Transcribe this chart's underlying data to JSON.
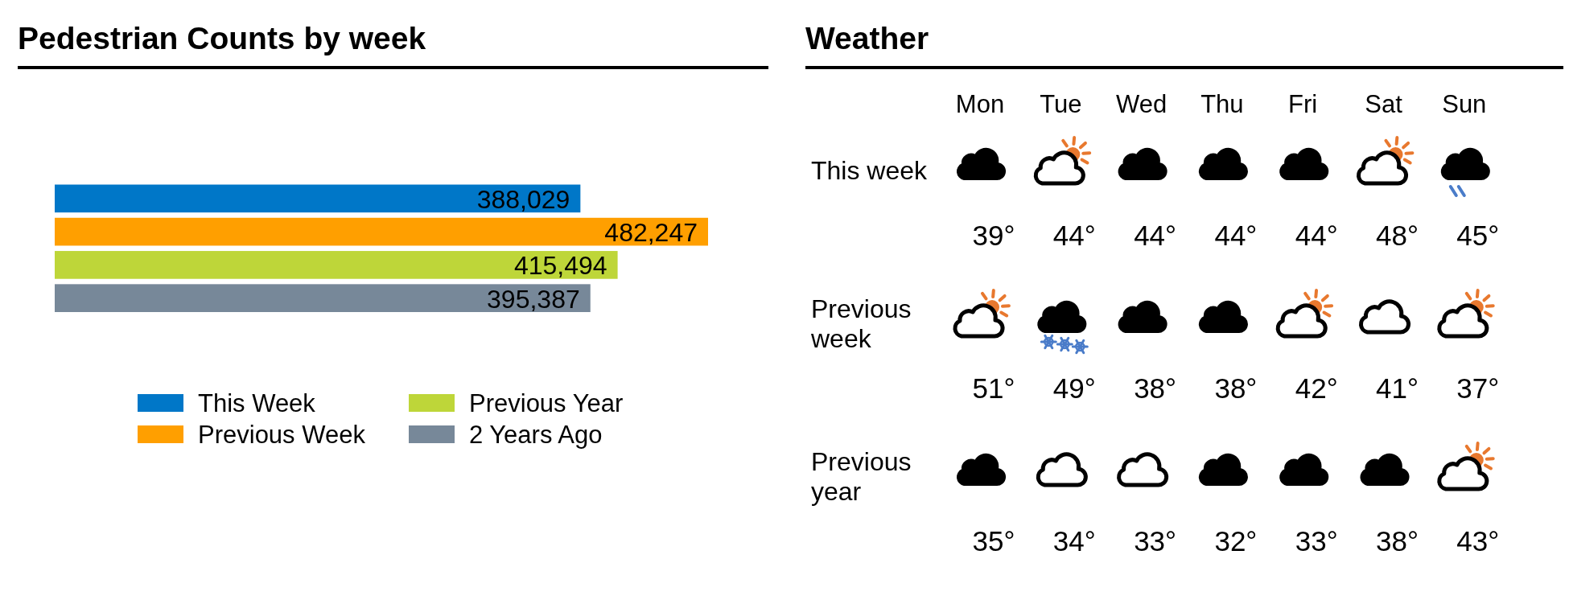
{
  "chart_data": [
    {
      "type": "bar",
      "title": "Pedestrian Counts by week",
      "orientation": "horizontal",
      "categories": [
        null
      ],
      "series": [
        {
          "name": "This Week",
          "color": "#0077c8",
          "values": [
            388029
          ],
          "value_labels": [
            "388,029"
          ]
        },
        {
          "name": "Previous Week",
          "color": "#ff9f00",
          "values": [
            482247
          ],
          "value_labels": [
            "482,247"
          ]
        },
        {
          "name": "Previous Year",
          "color": "#bed639",
          "values": [
            415494
          ],
          "value_labels": [
            "415,494"
          ]
        },
        {
          "name": "2 Years Ago",
          "color": "#778899",
          "values": [
            395387
          ],
          "value_labels": [
            "395,387"
          ]
        }
      ],
      "legend": "bottom"
    },
    {
      "type": "other",
      "title": "Weather",
      "categories": [
        "Mon",
        "Tue",
        "Wed",
        "Thu",
        "Fri",
        "Sat",
        "Sun"
      ],
      "y_categories": [
        "This week",
        "Previous week",
        "Previous year"
      ],
      "cell_labels": [
        [
          "39°",
          "44°",
          "44°",
          "44°",
          "44°",
          "48°",
          "45°"
        ],
        [
          "51°",
          "49°",
          "38°",
          "38°",
          "42°",
          "41°",
          "37°"
        ],
        [
          "35°",
          "34°",
          "33°",
          "32°",
          "33°",
          "38°",
          "43°"
        ]
      ]
    }
  ]
}
